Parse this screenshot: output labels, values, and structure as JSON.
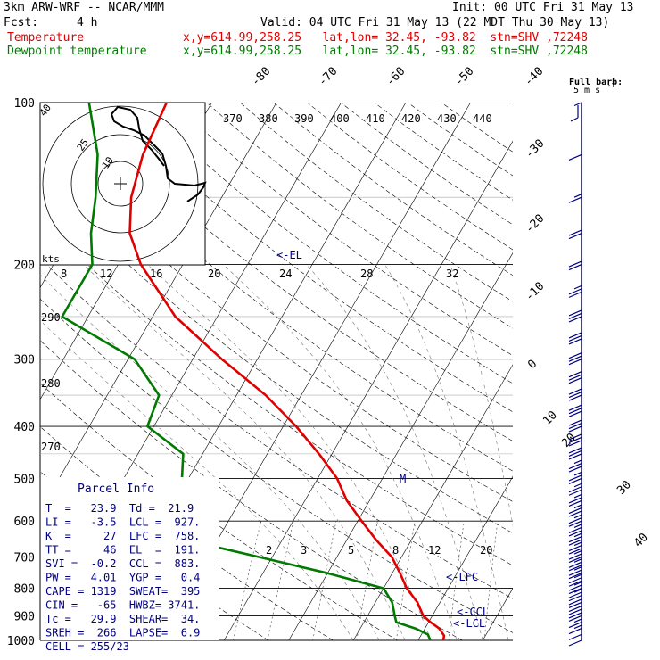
{
  "header": {
    "model": "3km ARW-WRF -- NCAR/MMM",
    "init": "Init: 00 UTC Fri 31 May 13",
    "fcst_label": "Fcst:",
    "fcst_value": "4 h",
    "valid": "Valid: 04 UTC Fri 31 May 13 (22 MDT Thu 30 May 13)",
    "temp_label": "Temperature",
    "temp_info": "x,y=614.99,258.25   lat,lon= 32.45, -93.82  stn=SHV ,72248",
    "dew_label": "Dewpoint temperature",
    "dew_info": "x,y=614.99,258.25   lat,lon= 32.45, -93.82  stn=SHV ,72248"
  },
  "colors": {
    "temperature": "#e00000",
    "dewpoint": "#007a00",
    "wind_barbs": "#000080",
    "parcel_text": "#000080",
    "hodograph": "#000000"
  },
  "wind_barb_legend": {
    "line1": "Full barb:",
    "line2": "5 m s"
  },
  "hodograph": {
    "unit_label": "kts",
    "ring_labels": [
      "10",
      "25",
      "40"
    ]
  },
  "labels": {
    "el": "<-EL",
    "lfc": "<-LFC",
    "ccl": "<-CCL",
    "lcl": "<-LCL",
    "m": "M"
  },
  "parcel_info": {
    "title": "Parcel Info",
    "rows": [
      "T  =   23.9  Td =  21.9",
      "LI =   -3.5  LCL =  927.",
      "K  =     27  LFC =  758.",
      "TT =     46  EL  =  191.",
      "SVI =  -0.2  CCL =  883.",
      "PW =   4.01  YGP =   0.4",
      "CAPE = 1319  SWEAT=  395",
      "CIN =   -65  HWBZ= 3741.",
      "Tc =   29.9  SHEAR=  34.",
      "SREH =  266  LAPSE=  6.9",
      "CELL = 255/23"
    ]
  },
  "chart_data": {
    "type": "line",
    "diagram": "skew-T log-P",
    "y_axis": {
      "label": "",
      "scale": "log",
      "unit": "hPa",
      "range": [
        1000,
        100
      ],
      "ticks": [
        100,
        200,
        300,
        400,
        500,
        600,
        700,
        800,
        900,
        1000
      ]
    },
    "isotherm_labels": [
      -80,
      -70,
      -60,
      -50,
      -40,
      -30,
      -20,
      -10,
      0,
      10,
      20,
      30,
      40
    ],
    "isentrope_labels_top": [
      370,
      380,
      390,
      400,
      410,
      420,
      430,
      440
    ],
    "isentrope_labels_left": [
      290,
      280,
      270
    ],
    "mixing_ratio_labels_upper": [
      8,
      12,
      16,
      20,
      24,
      28,
      32
    ],
    "mixing_ratio_labels_lower": [
      2,
      3,
      5,
      8,
      12,
      20
    ],
    "series": [
      {
        "name": "Temperature",
        "pressure": [
          1000,
          980,
          950,
          925,
          900,
          850,
          800,
          750,
          700,
          650,
          600,
          550,
          500,
          450,
          400,
          350,
          300,
          250,
          200,
          175,
          150,
          125,
          100
        ],
        "temperature_c": [
          23.9,
          23.6,
          22.2,
          20.3,
          18.6,
          16.5,
          13.6,
          11.2,
          8.5,
          4.5,
          0.6,
          -3.5,
          -7.0,
          -12.0,
          -18.0,
          -25.5,
          -35.5,
          -46.5,
          -56.5,
          -61.0,
          -64.0,
          -66.0,
          -67.0
        ]
      },
      {
        "name": "Dewpoint temperature",
        "pressure": [
          1000,
          975,
          950,
          925,
          900,
          850,
          800,
          750,
          700,
          650,
          600,
          550,
          500,
          450,
          400,
          350,
          300,
          250,
          200,
          175,
          150,
          125,
          100
        ],
        "temperature_c": [
          21.9,
          21.0,
          18.5,
          15.0,
          14.2,
          12.6,
          10.0,
          0.0,
          -12.0,
          -25.0,
          -38.0,
          -35.0,
          -31.0,
          -33.0,
          -41.0,
          -42.0,
          -49.0,
          -64.0,
          -64.0,
          -67.0,
          -69.5,
          -73.0,
          -79.0
        ]
      }
    ],
    "wind_profile": {
      "pressure": [
        1000,
        975,
        950,
        925,
        900,
        875,
        850,
        825,
        800,
        775,
        750,
        725,
        700,
        675,
        650,
        625,
        600,
        575,
        550,
        525,
        500,
        475,
        450,
        425,
        400,
        375,
        350,
        325,
        300,
        275,
        250,
        225,
        200,
        175,
        150,
        125,
        100
      ],
      "speed_kt": [
        10,
        12,
        15,
        18,
        20,
        22,
        24,
        25,
        25,
        25,
        25,
        25,
        25,
        25,
        25,
        25,
        25,
        25,
        25,
        25,
        25,
        25,
        30,
        30,
        30,
        30,
        30,
        30,
        30,
        30,
        30,
        25,
        20,
        20,
        15,
        10,
        5
      ]
    }
  }
}
